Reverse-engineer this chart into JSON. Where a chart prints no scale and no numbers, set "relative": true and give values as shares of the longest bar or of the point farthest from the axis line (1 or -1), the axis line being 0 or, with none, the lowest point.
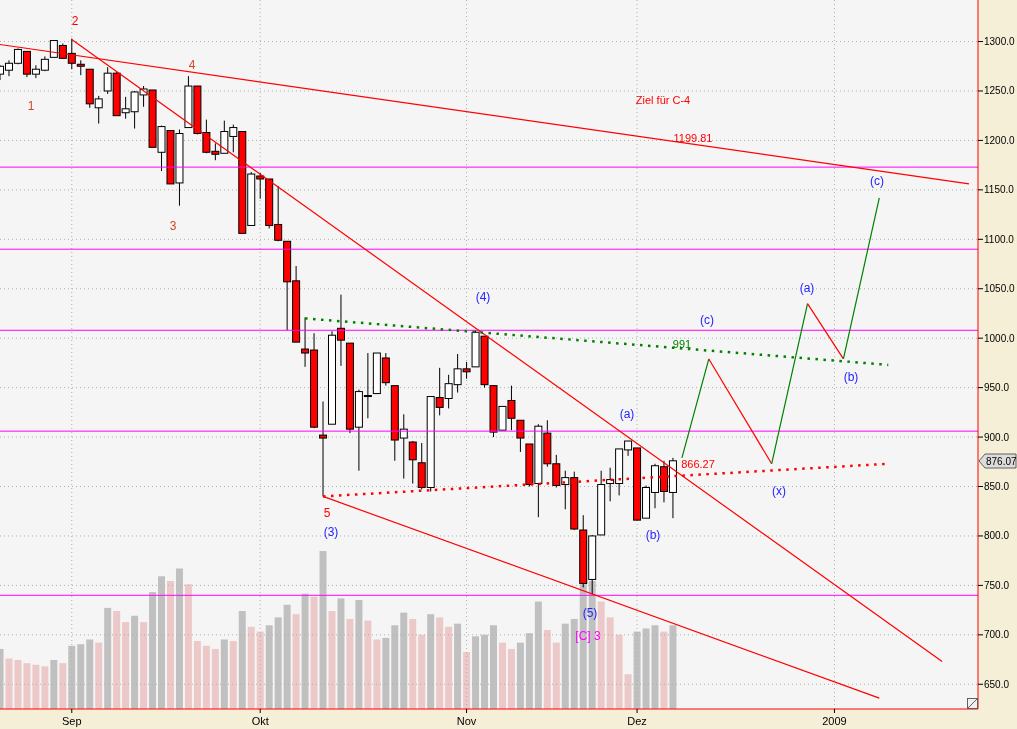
{
  "chart_data": [
    {
      "type": "candlestick",
      "categories": [
        null,
        null,
        null,
        null,
        null,
        null,
        null,
        null,
        "Sep",
        null,
        null,
        null,
        null,
        null,
        null,
        null,
        null,
        null,
        null,
        null,
        null,
        null,
        null,
        null,
        null,
        null,
        null,
        null,
        null,
        "Okt",
        null,
        null,
        null,
        null,
        null,
        null,
        null,
        null,
        null,
        null,
        null,
        null,
        null,
        null,
        null,
        null,
        null,
        null,
        null,
        null,
        null,
        null,
        "Nov",
        null,
        null,
        null,
        null,
        null,
        null,
        null,
        null,
        null,
        null,
        null,
        null,
        null,
        null,
        null,
        null,
        null,
        null,
        "Dez",
        null,
        null,
        null,
        null,
        null,
        null,
        null,
        null,
        null,
        null,
        null,
        null,
        null,
        null,
        null,
        null,
        null,
        null,
        null,
        null,
        null,
        "2009",
        null,
        null,
        null,
        null,
        null,
        null,
        null,
        null,
        null,
        null,
        null,
        null,
        null,
        null,
        null,
        null
      ],
      "ohlc": [
        [
          1267,
          1276,
          1261,
          1275
        ],
        [
          1271,
          1281,
          1265,
          1278
        ],
        [
          1278,
          1293,
          1277,
          1292
        ],
        [
          1290,
          1290,
          1264,
          1267
        ],
        [
          1267,
          1276,
          1263,
          1272
        ],
        [
          1271,
          1285,
          1270,
          1282
        ],
        [
          1284,
          1301,
          1284,
          1301
        ],
        [
          1296,
          1298,
          1283,
          1283
        ],
        [
          1288,
          1303,
          1272,
          1278
        ],
        [
          1277,
          1281,
          1266,
          1275
        ],
        [
          1272,
          1272,
          1233,
          1237
        ],
        [
          1233,
          1245,
          1217,
          1242
        ],
        [
          1250,
          1274,
          1247,
          1268
        ],
        [
          1268,
          1269,
          1225,
          1225
        ],
        [
          1228,
          1244,
          1222,
          1232
        ],
        [
          1229,
          1250,
          1212,
          1249
        ],
        [
          1246,
          1255,
          1234,
          1252
        ],
        [
          1251,
          1251,
          1193,
          1193
        ],
        [
          1188,
          1215,
          1169,
          1214
        ],
        [
          1210,
          1210,
          1156,
          1156
        ],
        [
          1157,
          1211,
          1134,
          1207
        ],
        [
          1213,
          1265,
          1213,
          1255
        ],
        [
          1255,
          1255,
          1206,
          1207
        ],
        [
          1208,
          1221,
          1187,
          1188
        ],
        [
          1189,
          1197,
          1180,
          1186
        ],
        [
          1187,
          1220,
          1187,
          1209
        ],
        [
          1204,
          1216,
          1188,
          1213
        ],
        [
          1209,
          1209,
          1106,
          1106
        ],
        [
          1114,
          1168,
          1114,
          1166
        ],
        [
          1164,
          1167,
          1141,
          1161
        ],
        [
          1161,
          1161,
          1111,
          1114
        ],
        [
          1115,
          1154,
          1098,
          1099
        ],
        [
          1098,
          1098,
          1008,
          1057
        ],
        [
          1058,
          1073,
          996,
          996
        ],
        [
          989,
          1021,
          971,
          985
        ],
        [
          988,
          1005,
          909,
          910
        ],
        [
          902,
          936,
          840,
          899
        ],
        [
          913,
          1007,
          913,
          1003
        ],
        [
          1010,
          1044,
          972,
          998
        ],
        [
          995,
          995,
          904,
          908
        ],
        [
          910,
          948,
          866,
          946
        ],
        [
          942,
          985,
          919,
          941
        ],
        [
          944,
          985,
          944,
          985
        ],
        [
          980,
          985,
          952,
          955
        ],
        [
          952,
          952,
          876,
          897
        ],
        [
          899,
          923,
          858,
          908
        ],
        [
          895,
          896,
          853,
          877
        ],
        [
          874,
          894,
          847,
          849
        ],
        [
          849,
          941,
          845,
          941
        ],
        [
          940,
          970,
          922,
          930
        ],
        [
          939,
          963,
          929,
          954
        ],
        [
          953,
          984,
          945,
          969
        ],
        [
          969,
          976,
          959,
          966
        ],
        [
          971,
          1008,
          971,
          1006
        ],
        [
          1002,
          1002,
          950,
          953
        ],
        [
          952,
          952,
          900,
          905
        ],
        [
          907,
          931,
          907,
          931
        ],
        [
          937,
          952,
          907,
          919
        ],
        [
          917,
          917,
          885,
          899
        ],
        [
          893,
          893,
          850,
          852
        ],
        [
          853,
          913,
          819,
          911
        ],
        [
          904,
          917,
          870,
          873
        ],
        [
          873,
          882,
          849,
          851
        ],
        [
          852,
          866,
          827,
          859
        ],
        [
          859,
          865,
          806,
          807
        ],
        [
          806,
          821,
          748,
          752
        ],
        [
          756,
          801,
          741,
          800
        ],
        [
          801,
          866,
          801,
          852
        ],
        [
          853,
          869,
          835,
          857
        ],
        [
          853,
          888,
          841,
          888
        ],
        [
          887,
          896,
          881,
          896
        ],
        [
          889,
          889,
          816,
          816
        ],
        [
          818,
          851,
          818,
          849
        ],
        [
          844,
          873,
          828,
          871
        ],
        [
          870,
          876,
          834,
          845
        ],
        [
          844,
          879,
          818,
          876
        ],
        null,
        null,
        null,
        null,
        null,
        null,
        null,
        null,
        null,
        null,
        null,
        null,
        null,
        null,
        null,
        null,
        null,
        null,
        null,
        null,
        null,
        null,
        null,
        null,
        null,
        null,
        null,
        null,
        null,
        null,
        null,
        null,
        null,
        null
      ],
      "colors": [
        "#ffffff",
        "#ffffff",
        "#ffffff",
        "#ff0000",
        "#ffffff",
        "#ffffff",
        "#ffffff",
        "#ff0000",
        "#ff0000",
        "#ff0000",
        "#ff0000",
        "#ffffff",
        "#ffffff",
        "#ff0000",
        "#ffffff",
        "#ffffff",
        "#ffffff",
        "#ff0000",
        "#ffffff",
        "#ff0000",
        "#ffffff",
        "#ffffff",
        "#ff0000",
        "#ff0000",
        "#ff0000",
        "#ffffff",
        "#ffffff",
        "#ff0000",
        "#ffffff",
        "#ff0000",
        "#ff0000",
        "#ff0000",
        "#ff0000",
        "#ff0000",
        "#ff0000",
        "#ff0000",
        "#ff0000",
        "#ffffff",
        "#ff0000",
        "#ff0000",
        "#ffffff",
        "#ff0000",
        "#ffffff",
        "#ff0000",
        "#ff0000",
        "#ffffff",
        "#ff0000",
        "#ff0000",
        "#ffffff",
        "#ff0000",
        "#ffffff",
        "#ffffff",
        "#ff0000",
        "#ffffff",
        "#ff0000",
        "#ff0000",
        "#ffffff",
        "#ff0000",
        "#ff0000",
        "#ff0000",
        "#ffffff",
        "#ff0000",
        "#ff0000",
        "#ffffff",
        "#ff0000",
        "#ff0000",
        "#ffffff",
        "#ffffff",
        "#ffffff",
        "#ffffff",
        "#ffffff",
        "#ff0000",
        "#ffffff",
        "#ffffff",
        "#ff0000",
        "#ffffff",
        null,
        null,
        null,
        null,
        null,
        null,
        null,
        null,
        null,
        null,
        null,
        null,
        null,
        null,
        null,
        null,
        null,
        null,
        null,
        null,
        null,
        null,
        null,
        null,
        null,
        null,
        null,
        null,
        null,
        null,
        null,
        null,
        null,
        null
      ],
      "series": [
        {
          "type": "line",
          "color": "#ff0000",
          "line_style": "solid",
          "values": [
            1297,
            null,
            null,
            null,
            null,
            null,
            null,
            null,
            null,
            null,
            null,
            null,
            null,
            null,
            null,
            null,
            null,
            null,
            null,
            null,
            null,
            null,
            null,
            null,
            null,
            null,
            null,
            null,
            null,
            null,
            null,
            null,
            null,
            null,
            null,
            null,
            null,
            null,
            null,
            null,
            null,
            null,
            null,
            null,
            null,
            null,
            null,
            null,
            null,
            null,
            null,
            null,
            null,
            null,
            null,
            null,
            null,
            null,
            null,
            null,
            null,
            null,
            null,
            null,
            null,
            null,
            null,
            null,
            null,
            null,
            null,
            null,
            null,
            null,
            null,
            null,
            null,
            null,
            null,
            null,
            null,
            null,
            null,
            null,
            null,
            null,
            null,
            null,
            null,
            null,
            null,
            null,
            null,
            null,
            null,
            null,
            null,
            null,
            null,
            null,
            null,
            null,
            null,
            null,
            null,
            null,
            null,
            null,
            1156,
            null
          ]
        },
        {
          "type": "line",
          "color": "#ff0000",
          "line_style": "solid",
          "values": [
            null,
            null,
            null,
            null,
            null,
            null,
            null,
            null,
            1302,
            null,
            null,
            null,
            null,
            null,
            null,
            null,
            null,
            null,
            null,
            null,
            null,
            null,
            null,
            null,
            null,
            null,
            null,
            null,
            null,
            null,
            null,
            null,
            null,
            null,
            null,
            null,
            null,
            null,
            null,
            null,
            null,
            null,
            null,
            null,
            null,
            null,
            null,
            null,
            null,
            null,
            null,
            null,
            null,
            null,
            null,
            null,
            null,
            null,
            null,
            null,
            null,
            null,
            null,
            null,
            null,
            null,
            null,
            null,
            null,
            null,
            null,
            null,
            null,
            null,
            null,
            null,
            null,
            null,
            null,
            null,
            null,
            null,
            null,
            null,
            null,
            null,
            null,
            null,
            null,
            null,
            null,
            null,
            null,
            null,
            null,
            null,
            null,
            null,
            null,
            null,
            null,
            null,
            null,
            null,
            null,
            673,
            null,
            null,
            null,
            null
          ]
        },
        {
          "type": "line",
          "color": "#ff0000",
          "line_style": "solid",
          "values": [
            null,
            null,
            null,
            null,
            null,
            null,
            null,
            null,
            null,
            null,
            null,
            null,
            null,
            null,
            null,
            null,
            null,
            null,
            null,
            null,
            null,
            null,
            null,
            null,
            null,
            null,
            null,
            null,
            null,
            null,
            null,
            null,
            null,
            null,
            null,
            null,
            840,
            null,
            null,
            null,
            null,
            null,
            null,
            null,
            null,
            null,
            null,
            null,
            null,
            null,
            null,
            null,
            null,
            null,
            null,
            null,
            null,
            null,
            null,
            null,
            null,
            null,
            null,
            null,
            null,
            null,
            null,
            null,
            null,
            null,
            null,
            null,
            null,
            null,
            null,
            null,
            null,
            null,
            null,
            null,
            null,
            null,
            null,
            null,
            null,
            null,
            null,
            null,
            null,
            null,
            null,
            null,
            null,
            null,
            null,
            null,
            null,
            null,
            636,
            null,
            null,
            null,
            null,
            null,
            null,
            null,
            null,
            null,
            null,
            null
          ]
        },
        {
          "type": "line",
          "color": "#ff0000",
          "line_style": "dotted",
          "values": [
            null,
            null,
            null,
            null,
            null,
            null,
            null,
            null,
            null,
            null,
            null,
            null,
            null,
            null,
            null,
            null,
            null,
            null,
            null,
            null,
            null,
            null,
            null,
            null,
            null,
            null,
            null,
            null,
            null,
            null,
            null,
            null,
            null,
            null,
            null,
            null,
            840,
            null,
            null,
            null,
            null,
            null,
            null,
            null,
            null,
            null,
            null,
            null,
            null,
            null,
            null,
            null,
            null,
            null,
            null,
            null,
            null,
            null,
            null,
            null,
            null,
            null,
            null,
            null,
            null,
            null,
            null,
            null,
            null,
            null,
            null,
            null,
            null,
            null,
            null,
            null,
            null,
            null,
            null,
            null,
            null,
            null,
            null,
            null,
            null,
            null,
            null,
            null,
            null,
            null,
            null,
            null,
            null,
            null,
            null,
            null,
            null,
            null,
            null,
            873,
            null,
            null,
            null,
            null,
            null,
            null,
            null,
            null,
            null,
            null
          ]
        },
        {
          "type": "line",
          "color": "#008000",
          "line_style": "dotted",
          "values": [
            null,
            null,
            null,
            null,
            null,
            null,
            null,
            null,
            null,
            null,
            null,
            null,
            null,
            null,
            null,
            null,
            null,
            null,
            null,
            null,
            null,
            null,
            null,
            null,
            null,
            null,
            null,
            null,
            null,
            null,
            null,
            null,
            null,
            null,
            1020,
            null,
            null,
            null,
            null,
            null,
            null,
            null,
            null,
            null,
            null,
            null,
            null,
            null,
            null,
            null,
            null,
            null,
            null,
            null,
            null,
            null,
            null,
            null,
            null,
            null,
            null,
            null,
            null,
            null,
            null,
            null,
            null,
            null,
            null,
            null,
            null,
            null,
            null,
            null,
            null,
            null,
            null,
            null,
            null,
            null,
            null,
            null,
            null,
            null,
            null,
            null,
            null,
            null,
            null,
            null,
            null,
            null,
            null,
            null,
            null,
            null,
            null,
            null,
            null,
            973,
            null,
            null,
            null,
            null,
            null,
            null,
            null,
            null,
            null,
            null
          ]
        },
        {
          "type": "line",
          "color": "#008000",
          "line_style": "solid",
          "values": [
            null,
            null,
            null,
            null,
            null,
            null,
            null,
            null,
            null,
            null,
            null,
            null,
            null,
            null,
            null,
            null,
            null,
            null,
            null,
            null,
            null,
            null,
            null,
            null,
            null,
            null,
            null,
            null,
            null,
            null,
            null,
            null,
            null,
            null,
            null,
            null,
            null,
            null,
            null,
            null,
            null,
            null,
            null,
            null,
            null,
            null,
            null,
            null,
            null,
            null,
            null,
            null,
            null,
            null,
            null,
            null,
            null,
            null,
            null,
            null,
            null,
            null,
            null,
            null,
            null,
            null,
            null,
            null,
            null,
            null,
            null,
            null,
            null,
            null,
            null,
            null,
            879,
            null,
            null,
            979,
            null,
            null,
            null,
            null,
            null,
            null,
            null,
            null,
            null,
            null,
            null,
            null,
            null,
            null,
            null,
            null,
            null,
            null,
            null,
            null,
            null,
            null,
            null,
            null,
            null,
            null,
            null,
            null,
            null,
            null
          ]
        },
        {
          "type": "line",
          "color": "#ff0000",
          "line_style": "solid",
          "values": [
            null,
            null,
            null,
            null,
            null,
            null,
            null,
            null,
            null,
            null,
            null,
            null,
            null,
            null,
            null,
            null,
            null,
            null,
            null,
            null,
            null,
            null,
            null,
            null,
            null,
            null,
            null,
            null,
            null,
            null,
            null,
            null,
            null,
            null,
            null,
            null,
            null,
            null,
            null,
            null,
            null,
            null,
            null,
            null,
            null,
            null,
            null,
            null,
            null,
            null,
            null,
            null,
            null,
            null,
            null,
            null,
            null,
            null,
            null,
            null,
            null,
            null,
            null,
            null,
            null,
            null,
            null,
            null,
            null,
            null,
            null,
            null,
            null,
            null,
            null,
            null,
            null,
            null,
            null,
            979,
            null,
            null,
            null,
            null,
            null,
            null,
            873,
            null,
            null,
            null,
            null,
            null,
            null,
            null,
            null,
            null,
            null,
            null,
            null,
            null,
            null,
            null,
            null,
            null,
            null,
            null,
            null,
            null,
            null,
            null
          ]
        },
        {
          "type": "line",
          "color": "#008000",
          "line_style": "solid",
          "values": [
            null,
            null,
            null,
            null,
            null,
            null,
            null,
            null,
            null,
            null,
            null,
            null,
            null,
            null,
            null,
            null,
            null,
            null,
            null,
            null,
            null,
            null,
            null,
            null,
            null,
            null,
            null,
            null,
            null,
            null,
            null,
            null,
            null,
            null,
            null,
            null,
            null,
            null,
            null,
            null,
            null,
            null,
            null,
            null,
            null,
            null,
            null,
            null,
            null,
            null,
            null,
            null,
            null,
            null,
            null,
            null,
            null,
            null,
            null,
            null,
            null,
            null,
            null,
            null,
            null,
            null,
            null,
            null,
            null,
            null,
            null,
            null,
            null,
            null,
            null,
            null,
            null,
            null,
            null,
            null,
            null,
            null,
            null,
            null,
            null,
            null,
            873,
            null,
            null,
            null,
            1035,
            null,
            null,
            null,
            null,
            null,
            null,
            null,
            null,
            null,
            null,
            null,
            null,
            null,
            null,
            null,
            null,
            null,
            null,
            null
          ]
        },
        {
          "type": "line",
          "color": "#ff0000",
          "line_style": "solid",
          "values": [
            null,
            null,
            null,
            null,
            null,
            null,
            null,
            null,
            null,
            null,
            null,
            null,
            null,
            null,
            null,
            null,
            null,
            null,
            null,
            null,
            null,
            null,
            null,
            null,
            null,
            null,
            null,
            null,
            null,
            null,
            null,
            null,
            null,
            null,
            null,
            null,
            null,
            null,
            null,
            null,
            null,
            null,
            null,
            null,
            null,
            null,
            null,
            null,
            null,
            null,
            null,
            null,
            null,
            null,
            null,
            null,
            null,
            null,
            null,
            null,
            null,
            null,
            null,
            null,
            null,
            null,
            null,
            null,
            null,
            null,
            null,
            null,
            null,
            null,
            null,
            null,
            null,
            null,
            null,
            null,
            null,
            null,
            null,
            null,
            null,
            null,
            null,
            null,
            null,
            null,
            1035,
            null,
            null,
            null,
            979,
            null,
            null,
            null,
            null,
            null,
            null,
            null,
            null,
            null,
            null,
            null,
            null,
            null,
            null,
            null
          ]
        },
        {
          "type": "line",
          "color": "#008000",
          "line_style": "solid",
          "values": [
            null,
            null,
            null,
            null,
            null,
            null,
            null,
            null,
            null,
            null,
            null,
            null,
            null,
            null,
            null,
            null,
            null,
            null,
            null,
            null,
            null,
            null,
            null,
            null,
            null,
            null,
            null,
            null,
            null,
            null,
            null,
            null,
            null,
            null,
            null,
            null,
            null,
            null,
            null,
            null,
            null,
            null,
            null,
            null,
            null,
            null,
            null,
            null,
            null,
            null,
            null,
            null,
            null,
            null,
            null,
            null,
            null,
            null,
            null,
            null,
            null,
            null,
            null,
            null,
            null,
            null,
            null,
            null,
            null,
            null,
            null,
            null,
            null,
            null,
            null,
            null,
            null,
            null,
            null,
            null,
            null,
            null,
            null,
            null,
            null,
            null,
            null,
            null,
            null,
            null,
            null,
            null,
            null,
            null,
            979,
            null,
            null,
            null,
            1142,
            null,
            null,
            null,
            null,
            null,
            null,
            null,
            null,
            null,
            null,
            null
          ]
        }
      ],
      "ylim": [
        625,
        1342
      ],
      "yticks": [
        {
          "value": 650,
          "label": "650.0"
        },
        {
          "value": 700,
          "label": "700.0"
        },
        {
          "value": 750,
          "label": "750.0"
        },
        {
          "value": 800,
          "label": "800.0"
        },
        {
          "value": 850,
          "label": "850.0"
        },
        {
          "value": 900,
          "label": "900.0"
        },
        {
          "value": 950,
          "label": "950.0"
        },
        {
          "value": 1000,
          "label": "1000.0"
        },
        {
          "value": 1050,
          "label": "1050.0"
        },
        {
          "value": 1100,
          "label": "1100.0"
        },
        {
          "value": 1150,
          "label": "1150.0"
        },
        {
          "value": 1200,
          "label": "1200.0"
        },
        {
          "value": 1250,
          "label": "1250.0"
        },
        {
          "value": 1300,
          "label": "1300.0"
        }
      ],
      "grid": true,
      "ref_lines": [
        {
          "axis": "y",
          "value": 1173,
          "color": "#ff00ff"
        },
        {
          "axis": "y",
          "value": 1090,
          "color": "#ff00ff"
        },
        {
          "axis": "y",
          "value": 1008,
          "color": "#ff00ff"
        },
        {
          "axis": "y",
          "value": 906,
          "color": "#ff00ff"
        },
        {
          "axis": "y",
          "value": 740,
          "color": "#ff00ff"
        }
      ],
      "annotations": [
        "1",
        "2",
        "3",
        "4",
        "5",
        "(3)",
        "(4)",
        "(5)",
        "[C] 3",
        "(a)",
        "(b)",
        "(c)",
        "(x)",
        "(a)",
        "(b)",
        "(c)",
        "Ziel für C-4",
        {
          "text": "1199.81",
          "y": 1199.81
        },
        {
          "text": "991",
          "y": 991
        },
        {
          "text": "866.27",
          "y": 866.27
        },
        "876.07"
      ]
    },
    {
      "type": "bar",
      "relative": true,
      "tick_labels": false,
      "categories": [
        null,
        null,
        null,
        null,
        null,
        null,
        null,
        null,
        null,
        null,
        null,
        null,
        null,
        null,
        null,
        null,
        null,
        null,
        null,
        null,
        null,
        null,
        null,
        null,
        null,
        null,
        null,
        null,
        null,
        null,
        null,
        null,
        null,
        null,
        null,
        null,
        null,
        null,
        null,
        null,
        null,
        null,
        null,
        null,
        null,
        null,
        null,
        null,
        null,
        null,
        null,
        null,
        null,
        null,
        null,
        null,
        null,
        null,
        null,
        null,
        null,
        null,
        null,
        null,
        null,
        null,
        null,
        null,
        null,
        null,
        null,
        null,
        null,
        null,
        null,
        null,
        null,
        null,
        null,
        null,
        null,
        null,
        null,
        null,
        null,
        null,
        null,
        null,
        null,
        null,
        null,
        null,
        null,
        null,
        null,
        null,
        null,
        null,
        null,
        null,
        null,
        null,
        null,
        null,
        null,
        null,
        null,
        null,
        null,
        null
      ],
      "values": [
        0.38,
        0.32,
        0.31,
        0.29,
        0.28,
        0.27,
        0.31,
        0.29,
        0.4,
        0.41,
        0.44,
        0.42,
        0.64,
        0.62,
        0.55,
        0.59,
        0.55,
        0.74,
        0.84,
        0.81,
        0.89,
        0.79,
        0.43,
        0.4,
        0.38,
        0.44,
        0.43,
        0.62,
        0.52,
        0.49,
        0.53,
        0.58,
        0.66,
        0.6,
        0.73,
        0.71,
        1,
        0.62,
        0.7,
        0.57,
        0.69,
        0.56,
        0.44,
        0.45,
        0.53,
        0.61,
        0.57,
        0.47,
        0.6,
        0.58,
        0.52,
        0.54,
        0.36,
        0.46,
        0.47,
        0.53,
        0.42,
        0.38,
        0.42,
        0.48,
        0.68,
        0.5,
        0.42,
        0.54,
        0.57,
        0.79,
        0.81,
        0.68,
        0.58,
        0.47,
        0.22,
        0.49,
        0.51,
        0.53,
        0.49,
        0.53,
        null,
        null,
        null,
        null,
        null,
        null,
        null,
        null,
        null,
        null,
        null,
        null,
        null,
        null,
        null,
        null,
        null,
        null,
        null,
        null,
        null,
        null,
        null,
        null,
        null,
        null,
        null,
        null,
        null,
        null,
        null,
        null,
        null,
        null
      ],
      "colors": [
        "#c0c0c0",
        "#ecc8c8",
        "#ecc8c8",
        "#ecc8c8",
        "#ecc8c8",
        "#ecc8c8",
        "#c0c0c0",
        "#ecc8c8",
        "#c0c0c0",
        "#c0c0c0",
        "#c0c0c0",
        "#ecc8c8",
        "#c0c0c0",
        "#ecc8c8",
        "#ecc8c8",
        "#c0c0c0",
        "#ecc8c8",
        "#c0c0c0",
        "#c0c0c0",
        "#ecc8c8",
        "#c0c0c0",
        "#ecc8c8",
        "#ecc8c8",
        "#ecc8c8",
        "#ecc8c8",
        "#c0c0c0",
        "#ecc8c8",
        "#c0c0c0",
        "#ecc8c8",
        "#ecc8c8",
        "#c0c0c0",
        "#c0c0c0",
        "#c0c0c0",
        "#ecc8c8",
        "#c0c0c0",
        "#ecc8c8",
        "#c0c0c0",
        "#ecc8c8",
        "#c0c0c0",
        "#ecc8c8",
        "#c0c0c0",
        "#ecc8c8",
        "#ecc8c8",
        "#c0c0c0",
        "#c0c0c0",
        "#c0c0c0",
        "#ecc8c8",
        "#ecc8c8",
        "#c0c0c0",
        "#ecc8c8",
        "#ecc8c8",
        "#c0c0c0",
        "#ecc8c8",
        "#c0c0c0",
        "#c0c0c0",
        "#c0c0c0",
        "#ecc8c8",
        "#ecc8c8",
        "#c0c0c0",
        "#c0c0c0",
        "#c0c0c0",
        "#ecc8c8",
        "#ecc8c8",
        "#c0c0c0",
        "#c0c0c0",
        "#c0c0c0",
        "#c0c0c0",
        "#ecc8c8",
        "#ecc8c8",
        "#ecc8c8",
        "#ecc8c8",
        "#c0c0c0",
        "#c0c0c0",
        "#c0c0c0",
        "#ecc8c8",
        "#c0c0c0",
        null,
        null,
        null,
        null,
        null,
        null,
        null,
        null,
        null,
        null,
        null,
        null,
        null,
        null,
        null,
        null,
        null,
        null,
        null,
        null,
        null,
        null,
        null,
        null,
        null,
        null,
        null,
        null,
        null,
        null,
        null,
        null,
        null,
        null
      ]
    }
  ]
}
